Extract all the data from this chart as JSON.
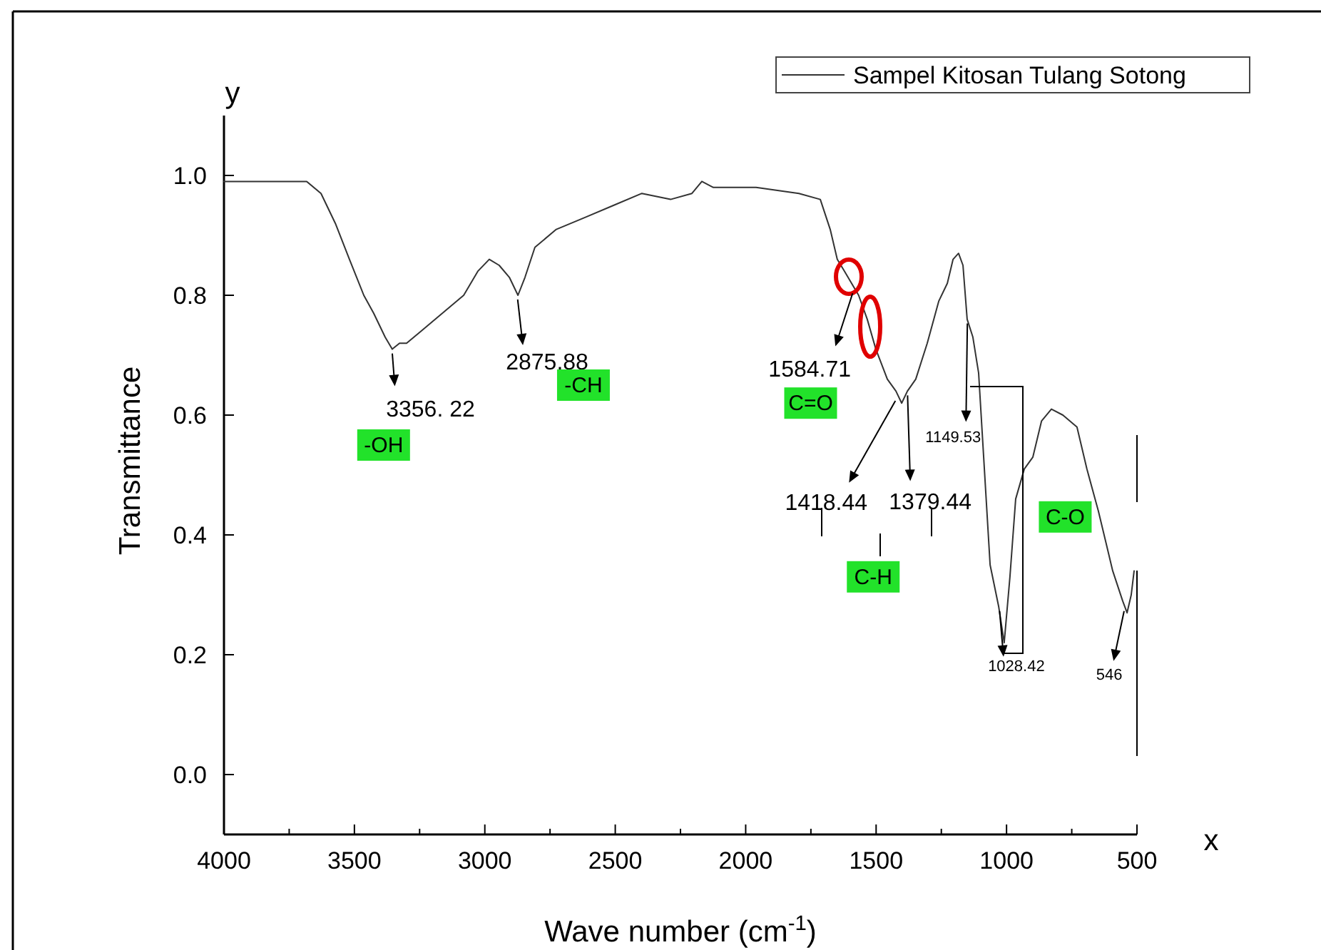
{
  "chart_data": {
    "type": "line",
    "xlabel": "Wave number (cm$^{-1}$)",
    "ylabel": "Transmittance",
    "xlim": [
      4000,
      500
    ],
    "ylim": [
      -0.1,
      1.1
    ],
    "xticks": [
      4000,
      {
        "value": 3750,
        "label": null
      },
      3500,
      {
        "value": 3250,
        "label": null
      },
      3000,
      {
        "value": 2750,
        "label": null
      },
      2500,
      {
        "value": 2250,
        "label": null
      },
      2000,
      {
        "value": 1750,
        "label": null
      },
      1500,
      {
        "value": 1250,
        "label": null
      },
      1000,
      {
        "value": 750,
        "label": null
      },
      500
    ],
    "yticks": [
      {
        "value": 0,
        "label": "0.0"
      },
      {
        "value": 0.2,
        "label": "0.2"
      },
      {
        "value": 0.4,
        "label": "0.4"
      },
      {
        "value": 0.6,
        "label": "0.6"
      },
      {
        "value": 0.8,
        "label": "0.8"
      },
      {
        "value": 1,
        "label": "1.0"
      }
    ],
    "legend": "top right",
    "marker": "none",
    "line_style": "solid",
    "series": [
      {
        "name": "Sampel Kitosan Tulang Sotong",
        "color": "#333333",
        "x": [
          4000,
          3765,
          3683,
          3628,
          3573,
          3519,
          3464,
          3426,
          3382,
          3355,
          3327,
          3300,
          3245,
          3163,
          3081,
          3027,
          2983,
          2945,
          2906,
          2873,
          2846,
          2808,
          2726,
          2616,
          2507,
          2398,
          2288,
          2206,
          2168,
          2124,
          2070,
          1960,
          1796,
          1714,
          1676,
          1649,
          1621,
          1594,
          1567,
          1534,
          1501,
          1457,
          1424,
          1402,
          1380,
          1348,
          1304,
          1260,
          1227,
          1205,
          1184,
          1167,
          1151,
          1129,
          1107,
          1085,
          1063,
          1030,
          1009,
          987,
          965,
          932,
          899,
          866,
          828,
          784,
          730,
          692,
          648,
          593,
          555,
          538,
          522,
          511
        ],
        "values": [
          0.99,
          0.99,
          0.99,
          0.97,
          0.92,
          0.86,
          0.8,
          0.77,
          0.73,
          0.71,
          0.72,
          0.72,
          0.74,
          0.77,
          0.8,
          0.84,
          0.86,
          0.85,
          0.83,
          0.8,
          0.83,
          0.88,
          0.91,
          0.93,
          0.95,
          0.97,
          0.96,
          0.97,
          0.99,
          0.98,
          0.98,
          0.98,
          0.97,
          0.96,
          0.91,
          0.86,
          0.84,
          0.82,
          0.8,
          0.76,
          0.71,
          0.66,
          0.64,
          0.62,
          0.64,
          0.66,
          0.72,
          0.79,
          0.82,
          0.86,
          0.87,
          0.85,
          0.76,
          0.73,
          0.67,
          0.51,
          0.35,
          0.28,
          0.22,
          0.33,
          0.46,
          0.51,
          0.53,
          0.59,
          0.61,
          0.6,
          0.58,
          0.51,
          0.44,
          0.34,
          0.29,
          0.27,
          0.3,
          0.34
        ]
      }
    ],
    "annotations": [
      {
        "text": "3356. 22",
        "x": 3356,
        "y": 0.71
      },
      {
        "text": "2875.88",
        "x": 2876,
        "y": 0.8
      },
      {
        "text": "1584.71",
        "x": 1585,
        "y": 0.81
      },
      {
        "text": "1418.44",
        "x": 1418,
        "y": 0.63
      },
      {
        "text": "1379.44",
        "x": 1380,
        "y": 0.64
      },
      {
        "text": "1149.53",
        "x": 1150,
        "y": 0.76
      },
      {
        "text": "1028.42",
        "x": 1028,
        "y": 0.28
      },
      {
        "text": "546",
        "x": 546,
        "y": 0.28
      },
      {
        "text": "-OH",
        "x": 3388,
        "y": 0.55
      },
      {
        "text": "-CH",
        "x": 2622,
        "y": 0.65
      },
      {
        "text": "C=O",
        "x": 1751,
        "y": 0.62
      },
      {
        "text": "C-H",
        "x": 1511,
        "y": 0.33
      },
      {
        "text": "C-O",
        "x": 775,
        "y": 0.43
      },
      "y",
      "x"
    ]
  }
}
